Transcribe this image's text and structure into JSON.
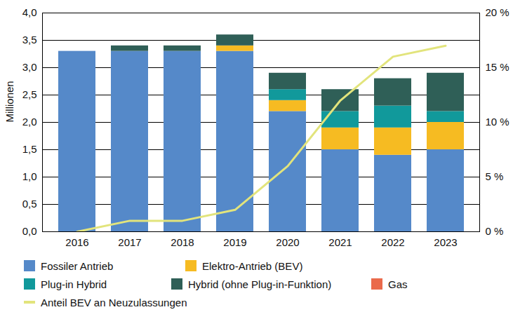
{
  "chart_data": {
    "type": "bar",
    "stacked": true,
    "grid": true,
    "legend": "bottom",
    "ylabel": "Millionen",
    "categories": [
      "2016",
      "2017",
      "2018",
      "2019",
      "2020",
      "2021",
      "2022",
      "2023"
    ],
    "ylim": [
      0,
      4
    ],
    "yticks": [
      {
        "value": 0,
        "label": "0,0"
      },
      {
        "value": 0.5,
        "label": "0,5"
      },
      {
        "value": 1,
        "label": "1,0"
      },
      {
        "value": 1.5,
        "label": "1,5"
      },
      {
        "value": 2,
        "label": "2,0"
      },
      {
        "value": 2.5,
        "label": "2,5"
      },
      {
        "value": 3,
        "label": "3,0"
      },
      {
        "value": 3.5,
        "label": "3,5"
      },
      {
        "value": 4,
        "label": "4,0"
      }
    ],
    "y2lim": [
      0,
      20
    ],
    "y2ticks": [
      {
        "value": 0,
        "label": "0 %"
      },
      {
        "value": 5,
        "label": "5 %"
      },
      {
        "value": 10,
        "label": "10 %"
      },
      {
        "value": 15,
        "label": "15 %"
      },
      {
        "value": 20,
        "label": "20 %"
      }
    ],
    "series": [
      {
        "name": "Fossiler Antrieb",
        "color": "#5589c9",
        "values": [
          3.3,
          3.3,
          3.3,
          3.3,
          2.2,
          1.5,
          1.4,
          1.5
        ]
      },
      {
        "name": "Elektro-Antrieb (BEV)",
        "color": "#f6bb22",
        "values": [
          0,
          0,
          0,
          0.1,
          0.2,
          0.4,
          0.5,
          0.5
        ]
      },
      {
        "name": "Plug-in Hybrid",
        "color": "#11999b",
        "values": [
          0,
          0,
          0,
          0,
          0.2,
          0.3,
          0.4,
          0.2
        ]
      },
      {
        "name": "Hybrid (ohne Plug-in-Funktion)",
        "color": "#2f5f57",
        "values": [
          0,
          0.1,
          0.1,
          0.2,
          0.3,
          0.4,
          0.5,
          0.7
        ]
      },
      {
        "name": "Gas",
        "color": "#ea6a4b",
        "values": [
          0,
          0,
          0,
          0,
          0,
          0,
          0,
          0
        ]
      },
      {
        "name": "Anteil BEV an Neuzulassungen",
        "color": "#e2e47c",
        "type": "line",
        "axis": "y2",
        "values": [
          0,
          1,
          1,
          2,
          6,
          12,
          16,
          17
        ]
      }
    ]
  }
}
